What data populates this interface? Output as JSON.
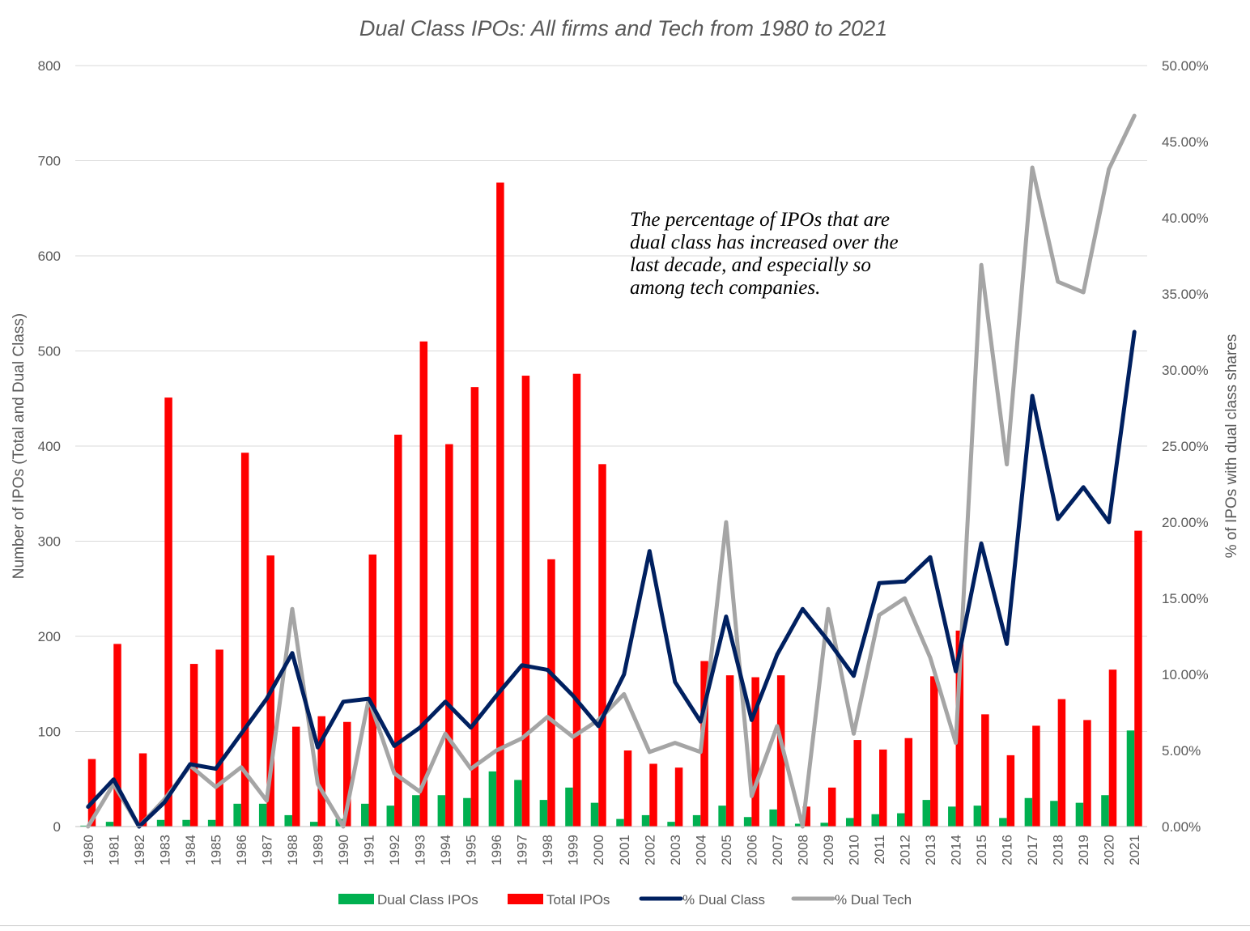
{
  "chart_data": {
    "type": "bar",
    "title": "Dual Class IPOs: All firms and Tech from 1980 to 2021",
    "ylabel": "Number of IPOs (Total and Dual Class)",
    "y2label": "% of IPOs with dual class shares",
    "ylim": [
      0,
      800
    ],
    "y2lim": [
      0,
      0.5
    ],
    "yticks": [
      "0",
      "100",
      "200",
      "300",
      "400",
      "500",
      "600",
      "700",
      "800"
    ],
    "y2ticks": [
      "0.00%",
      "5.00%",
      "10.00%",
      "15.00%",
      "20.00%",
      "25.00%",
      "30.00%",
      "35.00%",
      "40.00%",
      "45.00%",
      "50.00%"
    ],
    "grid": true,
    "legend_position": "bottom",
    "categories": [
      "1980",
      "1981",
      "1982",
      "1983",
      "1984",
      "1985",
      "1986",
      "1987",
      "1988",
      "1989",
      "1990",
      "1991",
      "1992",
      "1993",
      "1994",
      "1995",
      "1996",
      "1997",
      "1998",
      "1999",
      "2000",
      "2001",
      "2002",
      "2003",
      "2004",
      "2005",
      "2006",
      "2007",
      "2008",
      "2009",
      "2010",
      "2011",
      "2012",
      "2013",
      "2014",
      "2015",
      "2016",
      "2017",
      "2018",
      "2019",
      "2020",
      "2021"
    ],
    "series": [
      {
        "name": "Dual Class IPOs",
        "kind": "bar",
        "axis": "left",
        "color": "#00b050",
        "values": [
          1,
          5,
          0,
          7,
          7,
          7,
          24,
          24,
          12,
          5,
          8,
          24,
          22,
          33,
          33,
          30,
          58,
          49,
          28,
          41,
          25,
          8,
          12,
          5,
          12,
          22,
          10,
          18,
          3,
          4,
          9,
          13,
          14,
          28,
          21,
          22,
          9,
          30,
          27,
          25,
          33,
          101
        ]
      },
      {
        "name": "Total IPOs",
        "kind": "bar",
        "axis": "left",
        "color": "#ff0000",
        "values": [
          71,
          192,
          77,
          451,
          171,
          186,
          393,
          285,
          105,
          116,
          110,
          286,
          412,
          510,
          402,
          462,
          677,
          474,
          281,
          476,
          381,
          80,
          66,
          62,
          174,
          159,
          157,
          159,
          21,
          41,
          91,
          81,
          93,
          158,
          206,
          118,
          75,
          106,
          134,
          112,
          165,
          311
        ]
      },
      {
        "name": "% Dual Class",
        "kind": "line",
        "axis": "right",
        "color": "#002060",
        "values": [
          0.013,
          0.031,
          0.0,
          0.016,
          0.041,
          0.038,
          0.061,
          0.084,
          0.114,
          0.052,
          0.082,
          0.084,
          0.053,
          0.065,
          0.082,
          0.065,
          0.086,
          0.106,
          0.103,
          0.086,
          0.066,
          0.1,
          0.181,
          0.095,
          0.069,
          0.138,
          0.07,
          0.113,
          0.143,
          0.122,
          0.099,
          0.16,
          0.161,
          0.177,
          0.102,
          0.186,
          0.12,
          0.283,
          0.202,
          0.223,
          0.2,
          0.325
        ]
      },
      {
        "name": "% Dual Tech",
        "kind": "line",
        "axis": "right",
        "color": "#a5a5a5",
        "values": [
          0.0,
          0.028,
          0.0,
          0.018,
          0.04,
          0.026,
          0.039,
          0.017,
          0.143,
          0.028,
          0.0,
          0.084,
          0.035,
          0.023,
          0.061,
          0.038,
          0.05,
          0.058,
          0.072,
          0.059,
          0.07,
          0.087,
          0.049,
          0.055,
          0.049,
          0.2,
          0.02,
          0.066,
          0.0,
          0.143,
          0.061,
          0.139,
          0.15,
          0.111,
          0.055,
          0.369,
          0.238,
          0.433,
          0.358,
          0.351,
          0.432,
          0.467
        ]
      }
    ],
    "annotation": {
      "lines": [
        "The percentage of IPOs that are",
        "dual class has increased over the",
        "last decade, and especially so",
        "among tech companies."
      ]
    }
  }
}
